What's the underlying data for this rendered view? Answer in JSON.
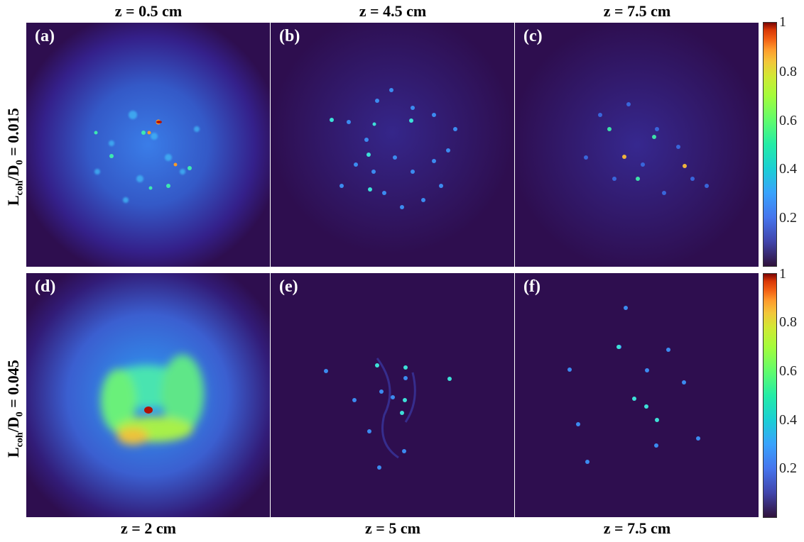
{
  "column_titles_top": [
    "z = 0.5 cm",
    "z = 4.5 cm",
    "z = 7.5 cm"
  ],
  "column_titles_bottom": [
    "z = 2 cm",
    "z = 5 cm",
    "z = 7.5 cm"
  ],
  "rows": [
    {
      "label_main": "L",
      "label_sub": "coh",
      "label_mid": "/D",
      "label_sub2": "0",
      "label_end": " = 0.015"
    },
    {
      "label_main": "L",
      "label_sub": "coh",
      "label_mid": "/D",
      "label_sub2": "0",
      "label_end": " = 0.045"
    }
  ],
  "panels": [
    "(a)",
    "(b)",
    "(c)",
    "(d)",
    "(e)",
    "(f)"
  ],
  "colorbar": {
    "ticks": [
      "1",
      "0.8",
      "0.6",
      "0.4",
      "0.2"
    ],
    "colormap": "turbo",
    "background_color": "#2e0e4f"
  }
}
